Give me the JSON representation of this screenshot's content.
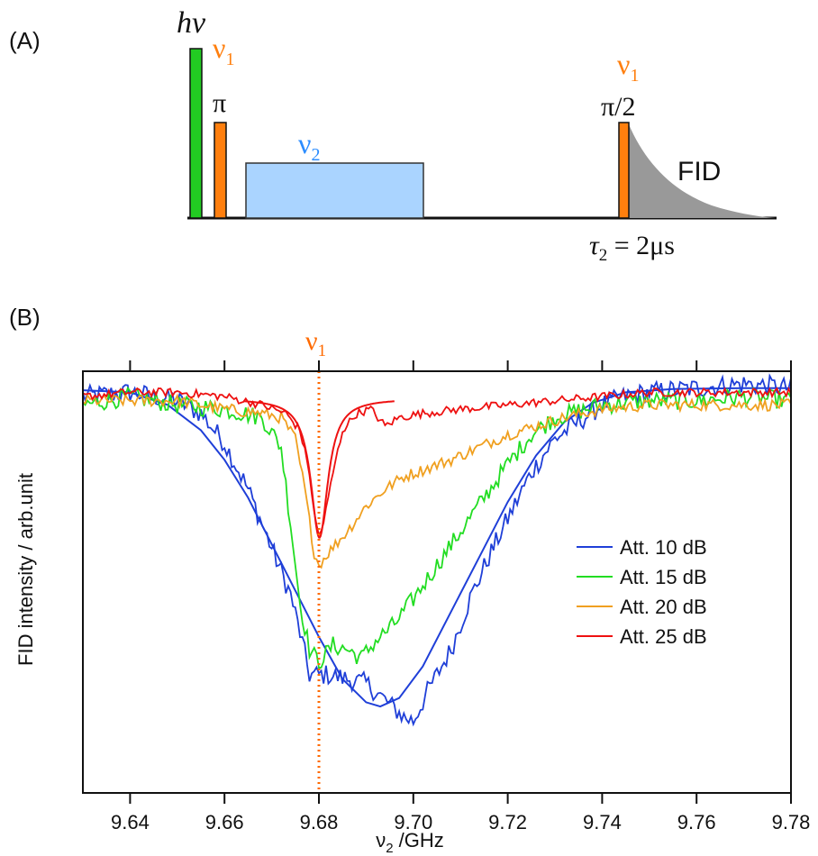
{
  "panel_a": {
    "label": "(A)",
    "hv": "hν",
    "nu1": "ν",
    "nu1_sub": "1",
    "pi": "π",
    "nu2": "ν",
    "nu2_sub": "2",
    "nu1_right": "ν",
    "nu1_right_sub": "1",
    "pi_half": "π/2",
    "fid": "FID",
    "tau": "τ",
    "tau_sub": "2",
    "tau_rest": " = 2μs",
    "colors": {
      "hv_pulse": "#22cc22",
      "nu1_pulse": "#ff7f0e",
      "nu2_pulse": "#aad4ff",
      "fid": "#999999",
      "nu1_text": "#ff7f0e",
      "nu2_text": "#2b8cff"
    }
  },
  "panel_b": {
    "label": "(B)",
    "marker_label": "ν",
    "marker_sub": "1",
    "marker_color": "#ff6a00"
  },
  "chart_data": {
    "type": "line",
    "xlabel": "ν",
    "xlabel_sub": "2",
    "xlabel_rest": " /GHz",
    "ylabel": "FID intensity / arb.unit",
    "xlim": [
      9.63,
      9.78
    ],
    "ylim": [
      0,
      1
    ],
    "x_ticks": [
      9.64,
      9.66,
      9.68,
      9.7,
      9.72,
      9.74,
      9.76,
      9.78
    ],
    "x_tick_labels": [
      "9.64",
      "9.66",
      "9.68",
      "9.70",
      "9.72",
      "9.74",
      "9.76",
      "9.78"
    ],
    "vline_x": 9.68,
    "legend_position": "right",
    "series": [
      {
        "name": "Att. 10 dB",
        "color": "#1f3fd8",
        "noise": 0.025,
        "measured": [
          [
            9.63,
            0.94
          ],
          [
            9.64,
            0.95
          ],
          [
            9.65,
            0.93
          ],
          [
            9.655,
            0.9
          ],
          [
            9.66,
            0.83
          ],
          [
            9.665,
            0.72
          ],
          [
            9.67,
            0.58
          ],
          [
            9.674,
            0.47
          ],
          [
            9.676,
            0.38
          ],
          [
            9.678,
            0.28
          ],
          [
            9.682,
            0.28
          ],
          [
            9.686,
            0.27
          ],
          [
            9.69,
            0.26
          ],
          [
            9.694,
            0.22
          ],
          [
            9.698,
            0.18
          ],
          [
            9.7,
            0.17
          ],
          [
            9.703,
            0.24
          ],
          [
            9.708,
            0.34
          ],
          [
            9.712,
            0.46
          ],
          [
            9.716,
            0.56
          ],
          [
            9.72,
            0.65
          ],
          [
            9.725,
            0.76
          ],
          [
            9.73,
            0.84
          ],
          [
            9.735,
            0.88
          ],
          [
            9.74,
            0.92
          ],
          [
            9.745,
            0.94
          ],
          [
            9.75,
            0.95
          ],
          [
            9.76,
            0.96
          ],
          [
            9.77,
            0.97
          ],
          [
            9.78,
            0.96
          ]
        ],
        "fit": [
          [
            9.63,
            0.955
          ],
          [
            9.64,
            0.95
          ],
          [
            9.648,
            0.92
          ],
          [
            9.655,
            0.86
          ],
          [
            9.66,
            0.79
          ],
          [
            9.665,
            0.7
          ],
          [
            9.67,
            0.59
          ],
          [
            9.675,
            0.48
          ],
          [
            9.68,
            0.37
          ],
          [
            9.685,
            0.27
          ],
          [
            9.69,
            0.215
          ],
          [
            9.693,
            0.205
          ],
          [
            9.697,
            0.225
          ],
          [
            9.702,
            0.3
          ],
          [
            9.708,
            0.43
          ],
          [
            9.714,
            0.56
          ],
          [
            9.72,
            0.69
          ],
          [
            9.726,
            0.8
          ],
          [
            9.732,
            0.88
          ],
          [
            9.738,
            0.925
          ],
          [
            9.745,
            0.95
          ],
          [
            9.755,
            0.958
          ],
          [
            9.77,
            0.96
          ],
          [
            9.78,
            0.96
          ]
        ]
      },
      {
        "name": "Att. 15 dB",
        "color": "#22dd22",
        "noise": 0.022,
        "measured": [
          [
            9.63,
            0.92
          ],
          [
            9.64,
            0.94
          ],
          [
            9.65,
            0.92
          ],
          [
            9.66,
            0.91
          ],
          [
            9.668,
            0.89
          ],
          [
            9.672,
            0.82
          ],
          [
            9.674,
            0.64
          ],
          [
            9.676,
            0.45
          ],
          [
            9.678,
            0.34
          ],
          [
            9.68,
            0.31
          ],
          [
            9.683,
            0.35
          ],
          [
            9.686,
            0.34
          ],
          [
            9.689,
            0.32
          ],
          [
            9.692,
            0.36
          ],
          [
            9.696,
            0.4
          ],
          [
            9.7,
            0.46
          ],
          [
            9.705,
            0.54
          ],
          [
            9.71,
            0.62
          ],
          [
            9.715,
            0.7
          ],
          [
            9.72,
            0.78
          ],
          [
            9.725,
            0.85
          ],
          [
            9.73,
            0.89
          ],
          [
            9.74,
            0.92
          ],
          [
            9.75,
            0.93
          ],
          [
            9.76,
            0.93
          ],
          [
            9.77,
            0.94
          ],
          [
            9.78,
            0.93
          ]
        ]
      },
      {
        "name": "Att. 20 dB",
        "color": "#f0a020",
        "noise": 0.014,
        "measured": [
          [
            9.63,
            0.93
          ],
          [
            9.64,
            0.93
          ],
          [
            9.65,
            0.93
          ],
          [
            9.66,
            0.91
          ],
          [
            9.668,
            0.9
          ],
          [
            9.672,
            0.89
          ],
          [
            9.675,
            0.84
          ],
          [
            9.677,
            0.72
          ],
          [
            9.679,
            0.57
          ],
          [
            9.68,
            0.54
          ],
          [
            9.682,
            0.57
          ],
          [
            9.686,
            0.62
          ],
          [
            9.69,
            0.68
          ],
          [
            9.694,
            0.72
          ],
          [
            9.698,
            0.75
          ],
          [
            9.703,
            0.77
          ],
          [
            9.708,
            0.79
          ],
          [
            9.714,
            0.82
          ],
          [
            9.72,
            0.85
          ],
          [
            9.726,
            0.87
          ],
          [
            9.732,
            0.89
          ],
          [
            9.74,
            0.91
          ],
          [
            9.75,
            0.92
          ],
          [
            9.76,
            0.92
          ],
          [
            9.77,
            0.92
          ],
          [
            9.78,
            0.92
          ]
        ]
      },
      {
        "name": "Att. 25 dB",
        "color": "#ee1111",
        "noise": 0.01,
        "measured": [
          [
            9.63,
            0.94
          ],
          [
            9.64,
            0.95
          ],
          [
            9.65,
            0.95
          ],
          [
            9.66,
            0.94
          ],
          [
            9.668,
            0.92
          ],
          [
            9.673,
            0.9
          ],
          [
            9.676,
            0.86
          ],
          [
            9.678,
            0.76
          ],
          [
            9.679,
            0.66
          ],
          [
            9.68,
            0.61
          ],
          [
            9.681,
            0.64
          ],
          [
            9.683,
            0.76
          ],
          [
            9.685,
            0.86
          ],
          [
            9.688,
            0.9
          ],
          [
            9.691,
            0.91
          ],
          [
            9.694,
            0.87
          ],
          [
            9.697,
            0.89
          ],
          [
            9.702,
            0.9
          ],
          [
            9.71,
            0.91
          ],
          [
            9.72,
            0.92
          ],
          [
            9.73,
            0.93
          ],
          [
            9.74,
            0.94
          ],
          [
            9.75,
            0.95
          ],
          [
            9.76,
            0.95
          ],
          [
            9.77,
            0.95
          ],
          [
            9.78,
            0.95
          ]
        ]
      }
    ]
  }
}
